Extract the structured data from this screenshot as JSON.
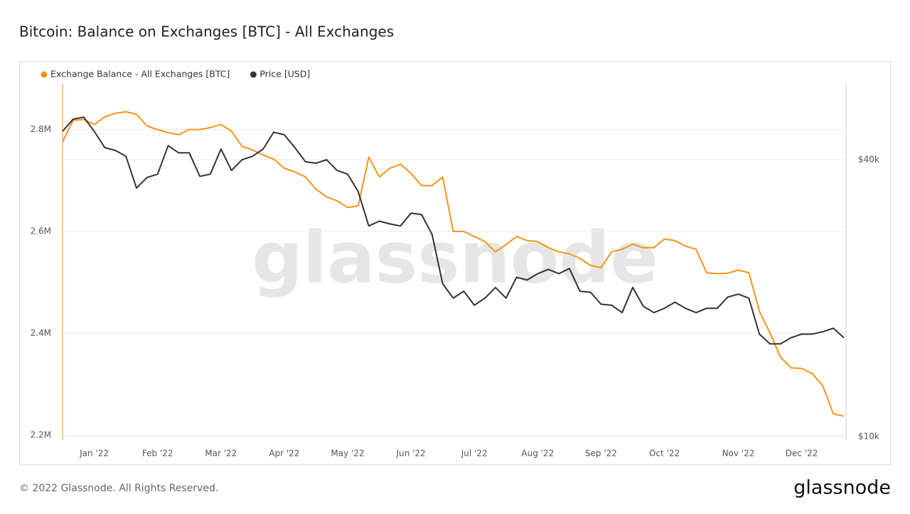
{
  "chart_data": {
    "type": "line",
    "title": "Bitcoin: Balance on Exchanges [BTC] - All Exchanges",
    "watermark": "glassnode",
    "footer": "© 2022 Glassnode. All Rights Reserved.",
    "logo": "glassnode",
    "categories": [
      null,
      null,
      null,
      "Jan '22",
      null,
      null,
      null,
      null,
      null,
      "Feb '22",
      null,
      null,
      null,
      null,
      null,
      "Mar '22",
      null,
      null,
      null,
      null,
      null,
      "Apr '22",
      null,
      null,
      null,
      null,
      null,
      "May '22",
      null,
      null,
      null,
      null,
      null,
      "Jun '22",
      null,
      null,
      null,
      null,
      null,
      "Jul '22",
      null,
      null,
      null,
      null,
      null,
      "Aug '22",
      null,
      null,
      null,
      null,
      null,
      "Sep '22",
      null,
      null,
      null,
      null,
      null,
      "Oct '22",
      null,
      null,
      null,
      null,
      null,
      null,
      "Nov '22",
      null,
      null,
      null,
      null,
      null,
      "Dec '22",
      null,
      null,
      null,
      null
    ],
    "series": [
      {
        "name": "Exchange Balance - All Exchanges [BTC]",
        "color": "#f7931a",
        "axis": "y",
        "values": [
          2776000,
          2818000,
          2820000,
          2810000,
          2825000,
          2832000,
          2835000,
          2830000,
          2807000,
          2800000,
          2794000,
          2790000,
          2800000,
          2800000,
          2804000,
          2810000,
          2797000,
          2767000,
          2760000,
          2750000,
          2742000,
          2724000,
          2717000,
          2707000,
          2683000,
          2668000,
          2660000,
          2647000,
          2650000,
          2746000,
          2707000,
          2724000,
          2732000,
          2714000,
          2690000,
          2690000,
          2707000,
          2600000,
          2600000,
          2590000,
          2580000,
          2560000,
          2574000,
          2590000,
          2582000,
          2580000,
          2568000,
          2560000,
          2556000,
          2547000,
          2533000,
          2529000,
          2560000,
          2565000,
          2575000,
          2568000,
          2568000,
          2585000,
          2582000,
          2571000,
          2565000,
          2519000,
          2517000,
          2518000,
          2524000,
          2519000,
          2443000,
          2401000,
          2353000,
          2332000,
          2331000,
          2321000,
          2297000,
          2242000,
          2237000
        ]
      },
      {
        "name": "Price [USD]",
        "color": "#333333",
        "axis": "y2",
        "values": [
          46100,
          49000,
          49500,
          46100,
          42500,
          41900,
          40700,
          34700,
          36600,
          37200,
          42900,
          41400,
          41400,
          36800,
          37200,
          42200,
          37900,
          40000,
          40700,
          42200,
          45900,
          45300,
          42500,
          39600,
          39300,
          40000,
          37900,
          37200,
          34100,
          28700,
          29400,
          29000,
          28700,
          30600,
          30400,
          27500,
          21500,
          20000,
          20700,
          19300,
          20000,
          21100,
          20000,
          22200,
          21900,
          22600,
          23100,
          22600,
          23200,
          20700,
          20600,
          19400,
          19300,
          18600,
          21100,
          19200,
          18600,
          19000,
          19600,
          19000,
          18600,
          19000,
          19000,
          20100,
          20400,
          20000,
          16700,
          15900,
          15900,
          16400,
          16700,
          16700,
          16900,
          17200,
          16400
        ]
      }
    ],
    "ylim": [
      2190000,
      2890000
    ],
    "yticks": [
      {
        "value": 2200000,
        "label": "2.2M"
      },
      {
        "value": 2400000,
        "label": "2.4M"
      },
      {
        "value": 2600000,
        "label": "2.6M"
      },
      {
        "value": 2800000,
        "label": "2.8M"
      }
    ],
    "y2lim": [
      9820,
      58500
    ],
    "y2ticks": [
      {
        "value": 10000,
        "label": "$10k"
      },
      {
        "value": 40000,
        "label": "$40k"
      }
    ],
    "y2log": true,
    "grid": true
  }
}
